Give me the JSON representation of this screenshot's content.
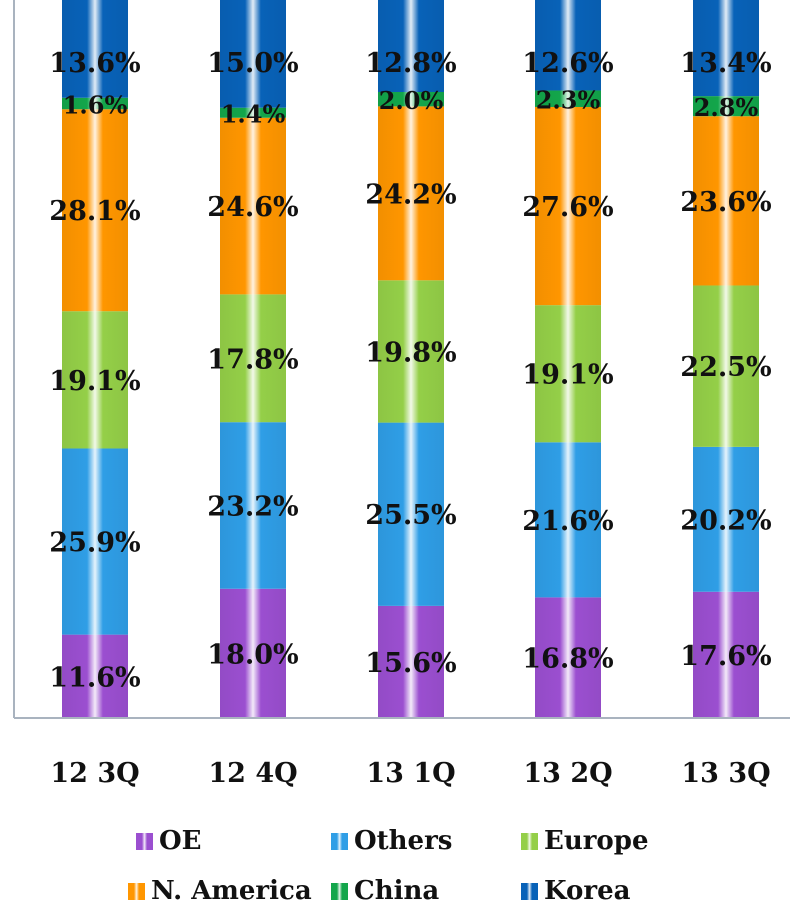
{
  "chart_data": {
    "type": "bar",
    "stacked": true,
    "percent_stacked": true,
    "categories": [
      "12 3Q",
      "12 4Q",
      "13 1Q",
      "13 2Q",
      "13 3Q"
    ],
    "series": [
      {
        "name": "OE",
        "color": "#9b4fd0",
        "values": [
          11.6,
          18.0,
          15.6,
          16.8,
          17.6
        ]
      },
      {
        "name": "Others",
        "color": "#2f9ee6",
        "values": [
          25.9,
          23.2,
          25.5,
          21.6,
          20.2
        ]
      },
      {
        "name": "Europe",
        "color": "#94cf48",
        "values": [
          19.1,
          17.8,
          19.8,
          19.1,
          22.5
        ]
      },
      {
        "name": "N. America",
        "color": "#ff9600",
        "values": [
          28.1,
          24.6,
          24.2,
          27.6,
          23.6
        ]
      },
      {
        "name": "China",
        "color": "#13a64b",
        "values": [
          1.6,
          1.4,
          2.0,
          2.3,
          2.8
        ]
      },
      {
        "name": "Korea",
        "color": "#0862b8",
        "values": [
          13.6,
          15.0,
          12.8,
          12.6,
          13.4
        ]
      }
    ],
    "data_labels": [
      [
        "11.6%",
        "25.9%",
        "19.1%",
        "28.1%",
        "1.6%",
        "13.6%"
      ],
      [
        "18.0%",
        "23.2%",
        "17.8%",
        "24.6%",
        "1.4%",
        "15.0%"
      ],
      [
        "15.6%",
        "25.5%",
        "19.8%",
        "24.2%",
        "2.0%",
        "12.8%"
      ],
      [
        "16.8%",
        "21.6%",
        "19.1%",
        "27.6%",
        "2.3%",
        "12.6%"
      ],
      [
        "17.6%",
        "20.2%",
        "22.5%",
        "23.6%",
        "2.8%",
        "13.4%"
      ]
    ],
    "legend_position": "bottom",
    "grid": false
  }
}
